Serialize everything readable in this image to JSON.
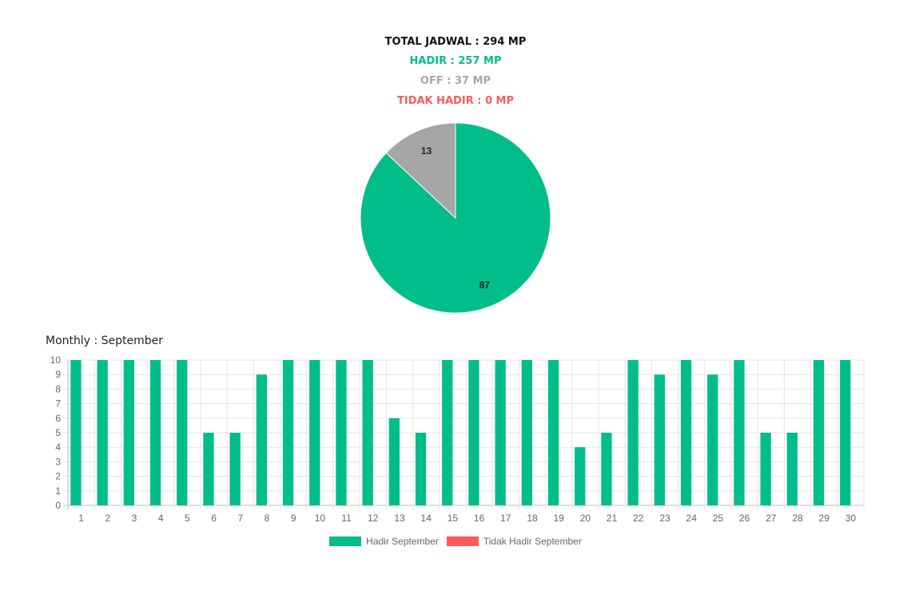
{
  "summary": {
    "total": "TOTAL JADWAL : 294 MP",
    "hadir": "HADIR : 257 MP",
    "off": "OFF : 37 MP",
    "tidak_hadir": "TIDAK HADIR : 0 MP"
  },
  "colors": {
    "hadir": "#00bd8a",
    "off": "#a6a6a6",
    "tidak_hadir": "#ff5a5a",
    "grid": "#e5e5e5"
  },
  "chart_data": [
    {
      "type": "pie",
      "slices": [
        {
          "label_value": "87",
          "value": 87,
          "color": "#00bd8a"
        },
        {
          "label_value": "13",
          "value": 13,
          "color": "#a6a6a6"
        },
        {
          "label_value": "0",
          "value": 0,
          "color": "#ff5a5a"
        }
      ]
    },
    {
      "type": "bar",
      "title": "Monthly : September",
      "categories": [
        "1",
        "2",
        "3",
        "4",
        "5",
        "6",
        "7",
        "8",
        "9",
        "10",
        "11",
        "12",
        "13",
        "14",
        "15",
        "16",
        "17",
        "18",
        "19",
        "20",
        "21",
        "22",
        "23",
        "24",
        "25",
        "26",
        "27",
        "28",
        "29",
        "30"
      ],
      "series": [
        {
          "name": "Hadir September",
          "color": "#00bd8a",
          "values": [
            10,
            10,
            10,
            10,
            10,
            5,
            5,
            9,
            10,
            10,
            10,
            10,
            6,
            5,
            10,
            10,
            10,
            10,
            10,
            4,
            5,
            10,
            9,
            10,
            9,
            10,
            5,
            5,
            10,
            10
          ]
        },
        {
          "name": "Tidak Hadir September",
          "color": "#ff5a5a",
          "values": [
            0,
            0,
            0,
            0,
            0,
            0,
            0,
            0,
            0,
            0,
            0,
            0,
            0,
            0,
            0,
            0,
            0,
            0,
            0,
            0,
            0,
            0,
            0,
            0,
            0,
            0,
            0,
            0,
            0,
            0
          ]
        }
      ],
      "ylim": [
        0,
        10
      ],
      "yticks": [
        "0",
        "1",
        "2",
        "3",
        "4",
        "5",
        "6",
        "7",
        "8",
        "9",
        "10"
      ],
      "grid": true,
      "legend": "bottom"
    }
  ]
}
